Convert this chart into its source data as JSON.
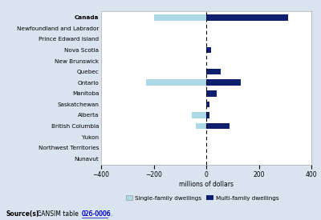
{
  "categories": [
    "Canada",
    "Newfoundland and Labrador",
    "Prince Edward Island",
    "Nova Scotia",
    "New Brunswick",
    "Quebec",
    "Ontario",
    "Manitoba",
    "Saskatchewan",
    "Alberta",
    "British Columbia",
    "Yukon",
    "Northwest Territories",
    "Nunavut"
  ],
  "single_family": [
    -200,
    0,
    0,
    0,
    0,
    5,
    -230,
    10,
    0,
    -55,
    -40,
    0,
    0,
    0
  ],
  "multi_family": [
    310,
    0,
    0,
    18,
    0,
    55,
    130,
    40,
    12,
    12,
    90,
    0,
    0,
    0
  ],
  "single_color": "#add8e6",
  "multi_color": "#0d1f6e",
  "xlim": [
    -400,
    400
  ],
  "xticks": [
    -400,
    -200,
    0,
    200,
    400
  ],
  "xlabel": "millions of dollars",
  "legend_single": "Single-family dwellings",
  "legend_multi": "Multi-family dwellings",
  "source_bold": "Source(s):",
  "source_rest": "  CANSIM table 026-0006.",
  "bg_color": "#d9e4f0",
  "plot_bg_color": "#ffffff"
}
